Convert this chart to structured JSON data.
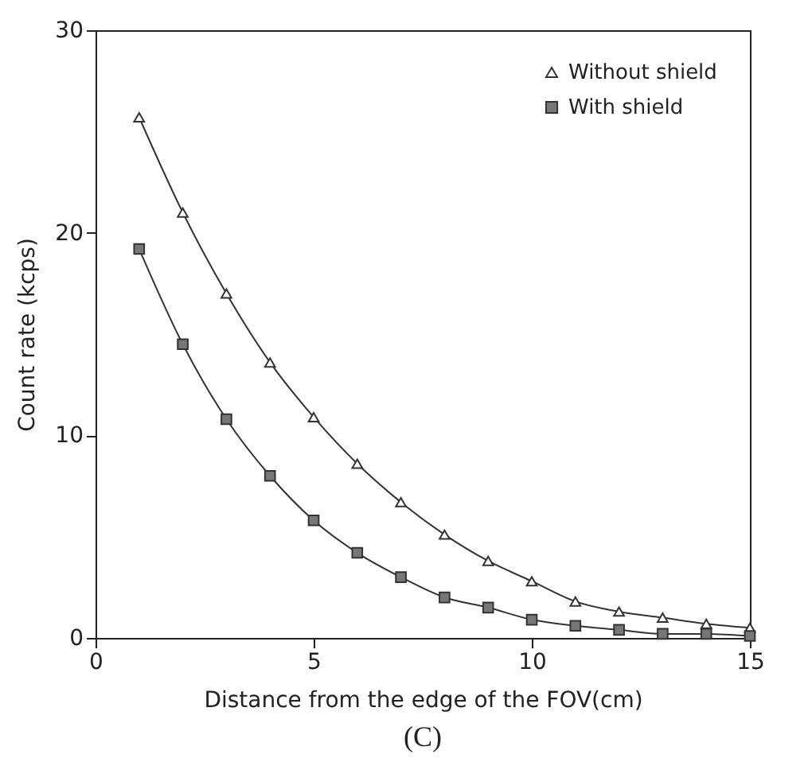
{
  "chart_data": {
    "type": "line",
    "xlabel": "Distance from the edge of the FOV(cm)",
    "ylabel": "Count rate (kcps)",
    "annotations": [
      "(C)"
    ],
    "x": [
      1,
      2,
      3,
      4,
      5,
      6,
      7,
      8,
      9,
      10,
      11,
      12,
      13,
      14,
      15
    ],
    "series": [
      {
        "name": "Without shield",
        "color": "#333333",
        "marker": "triangle",
        "values": [
          25.7,
          21.0,
          17.0,
          13.6,
          10.9,
          8.6,
          6.7,
          5.1,
          3.8,
          2.8,
          1.8,
          1.3,
          1.0,
          0.7,
          0.5
        ]
      },
      {
        "name": "With shield",
        "color": "#333333",
        "marker": "square",
        "values": [
          19.2,
          14.5,
          10.8,
          8.0,
          5.8,
          4.2,
          3.0,
          2.0,
          1.5,
          0.9,
          0.6,
          0.4,
          0.2,
          0.2,
          0.1
        ]
      }
    ],
    "xlim": [
      0,
      15
    ],
    "xticks": [
      0,
      5,
      10,
      15
    ],
    "ylim": [
      0,
      30
    ],
    "yticks": [
      0,
      10,
      20,
      30
    ],
    "grid": false,
    "legend": "top right",
    "line_style": "solid"
  }
}
